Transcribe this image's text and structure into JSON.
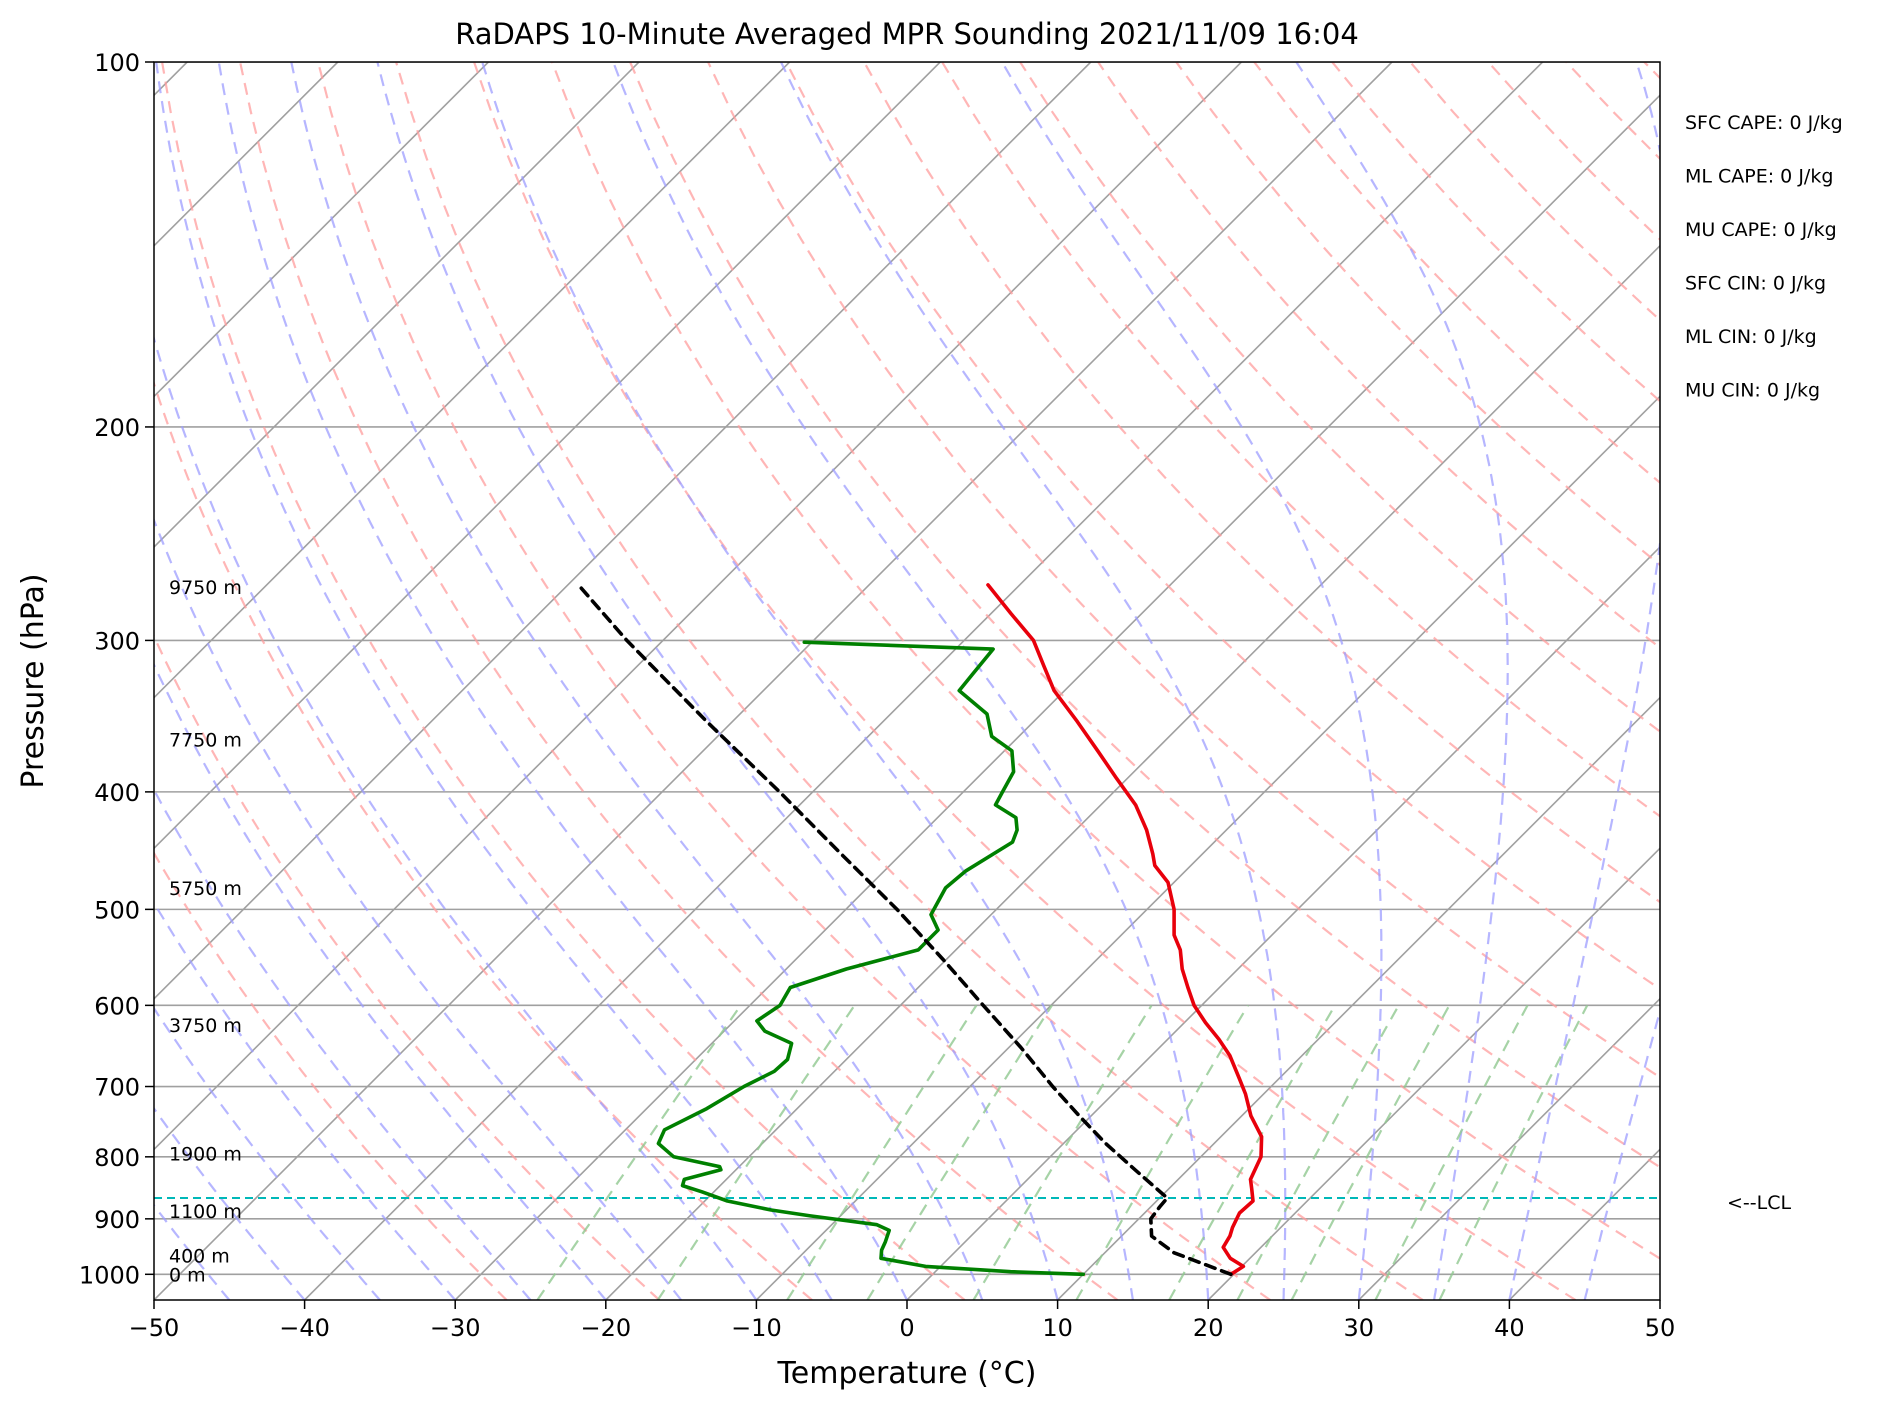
{
  "chart_data": {
    "type": "line",
    "title": "RaDAPS 10-Minute Averaged MPR Sounding 2021/11/09 16:04",
    "xlabel": "Temperature (°C)",
    "ylabel": "Pressure (hPa)",
    "xlim": [
      -50,
      50
    ],
    "ylim": [
      1050,
      100
    ],
    "y_scale": "log",
    "grid": true,
    "x_ticks": [
      "−50",
      "−40",
      "−30",
      "−20",
      "−10",
      "0",
      "10",
      "20",
      "30",
      "40",
      "50"
    ],
    "x_tick_values": [
      -50,
      -40,
      -30,
      -20,
      -10,
      0,
      10,
      20,
      30,
      40,
      50
    ],
    "y_ticks": [
      "100",
      "200",
      "300",
      "400",
      "500",
      "600",
      "700",
      "800",
      "900",
      "1000"
    ],
    "y_tick_values": [
      100,
      200,
      300,
      400,
      500,
      600,
      700,
      800,
      900,
      1000
    ],
    "series": [
      {
        "key": "temperature",
        "color": "#e8000b",
        "points": [
          [
            1000,
            19.8
          ],
          [
            985,
            20.1
          ],
          [
            970,
            18.7
          ],
          [
            950,
            17.5
          ],
          [
            930,
            17.2
          ],
          [
            915,
            16.8
          ],
          [
            890,
            16.3
          ],
          [
            870,
            16.4
          ],
          [
            850,
            15.5
          ],
          [
            835,
            14.8
          ],
          [
            800,
            14.0
          ],
          [
            770,
            12.7
          ],
          [
            740,
            10.6
          ],
          [
            710,
            8.8
          ],
          [
            690,
            7.4
          ],
          [
            660,
            5.2
          ],
          [
            640,
            3.4
          ],
          [
            620,
            1.4
          ],
          [
            600,
            -0.5
          ],
          [
            580,
            -2.1
          ],
          [
            560,
            -3.7
          ],
          [
            540,
            -5.1
          ],
          [
            525,
            -6.5
          ],
          [
            500,
            -8.2
          ],
          [
            475,
            -10.4
          ],
          [
            460,
            -12.4
          ],
          [
            450,
            -13.3
          ],
          [
            430,
            -15.3
          ],
          [
            410,
            -17.7
          ],
          [
            390,
            -20.7
          ],
          [
            370,
            -23.8
          ],
          [
            350,
            -27.1
          ],
          [
            330,
            -30.7
          ],
          [
            315,
            -33.0
          ],
          [
            300,
            -35.4
          ],
          [
            285,
            -38.7
          ],
          [
            270,
            -42.1
          ]
        ]
      },
      {
        "key": "dewpoint",
        "color": "#008000",
        "points": [
          [
            1000,
            10.0
          ],
          [
            995,
            5.0
          ],
          [
            985,
            -1.0
          ],
          [
            970,
            -4.5
          ],
          [
            955,
            -5.0
          ],
          [
            940,
            -5.3
          ],
          [
            920,
            -5.8
          ],
          [
            910,
            -7.0
          ],
          [
            895,
            -12.0
          ],
          [
            885,
            -15.0
          ],
          [
            870,
            -18.5
          ],
          [
            855,
            -20.8
          ],
          [
            845,
            -22.5
          ],
          [
            835,
            -22.8
          ],
          [
            820,
            -21.0
          ],
          [
            815,
            -21.3
          ],
          [
            800,
            -25.0
          ],
          [
            780,
            -26.9
          ],
          [
            760,
            -27.4
          ],
          [
            730,
            -26.0
          ],
          [
            700,
            -25.0
          ],
          [
            680,
            -24.0
          ],
          [
            665,
            -23.9
          ],
          [
            645,
            -24.7
          ],
          [
            630,
            -27.3
          ],
          [
            618,
            -28.5
          ],
          [
            600,
            -28.0
          ],
          [
            580,
            -28.5
          ],
          [
            560,
            -26.0
          ],
          [
            540,
            -22.5
          ],
          [
            520,
            -22.5
          ],
          [
            505,
            -24.0
          ],
          [
            480,
            -24.8
          ],
          [
            465,
            -24.6
          ],
          [
            440,
            -23.4
          ],
          [
            430,
            -23.9
          ],
          [
            420,
            -24.8
          ],
          [
            410,
            -27.0
          ],
          [
            400,
            -27.4
          ],
          [
            385,
            -28.0
          ],
          [
            370,
            -29.5
          ],
          [
            360,
            -31.8
          ],
          [
            345,
            -33.6
          ],
          [
            330,
            -37.0
          ],
          [
            320,
            -37.2
          ],
          [
            305,
            -37.5
          ],
          [
            301,
            -50.5
          ]
        ]
      },
      {
        "key": "parcel",
        "color": "#000000",
        "dashed": true,
        "points": [
          [
            1000,
            19.8
          ],
          [
            960,
            14.6
          ],
          [
            930,
            12.0
          ],
          [
            900,
            10.8
          ],
          [
            880,
            10.6
          ],
          [
            865,
            10.5
          ],
          [
            820,
            6.5
          ],
          [
            780,
            2.8
          ],
          [
            740,
            -0.8
          ],
          [
            700,
            -4.5
          ],
          [
            650,
            -9.2
          ],
          [
            600,
            -14.5
          ],
          [
            550,
            -20.2
          ],
          [
            500,
            -26.6
          ],
          [
            450,
            -34.0
          ],
          [
            400,
            -42.2
          ],
          [
            350,
            -51.7
          ],
          [
            300,
            -62.4
          ],
          [
            270,
            -69.3
          ]
        ]
      }
    ],
    "lcl_label": "<--LCL",
    "lcl_pressure": 865,
    "height_labels": [
      {
        "text": "9750 m",
        "p": 271
      },
      {
        "text": "7750 m",
        "p": 362
      },
      {
        "text": "5750 m",
        "p": 480
      },
      {
        "text": "3750 m",
        "p": 623
      },
      {
        "text": "1900 m",
        "p": 795
      },
      {
        "text": "1100 m",
        "p": 887
      },
      {
        "text": "400 m",
        "p": 965
      },
      {
        "text": "0 m",
        "p": 1000
      }
    ],
    "stats": [
      "SFC CAPE: 0 J/kg",
      "ML CAPE: 0 J/kg",
      "MU CAPE: 0 J/kg",
      "SFC CIN: 0 J/kg",
      "ML CIN: 0 J/kg",
      "MU CIN: 0 J/kg"
    ],
    "reference_lines": {
      "isotherms_color": "#a0a0a0",
      "dry_adiabats_color": "#ff9e9e",
      "moist_adiabats_color": "#9e9eff",
      "mixing_ratio_color": "#90c890",
      "lcl_color": "#00b8b8"
    }
  }
}
